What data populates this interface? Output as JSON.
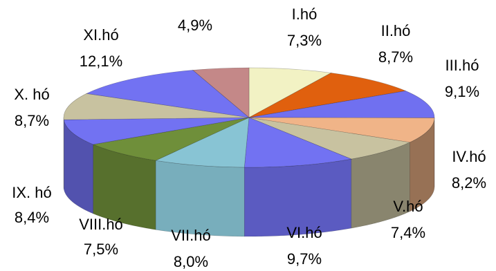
{
  "chart_data": {
    "type": "pie",
    "style": "3d",
    "title": "",
    "legend": "none",
    "start_angle_deg": 90,
    "direction": "clockwise",
    "slices": [
      {
        "name": "I.hó",
        "value": 7.3,
        "label": "7,3%",
        "color": "#f2f2c4"
      },
      {
        "name": "II.hó",
        "value": 8.7,
        "label": "8,7%",
        "color": "#e0600e"
      },
      {
        "name": "III.hó",
        "value": 9.1,
        "label": "9,1%",
        "color": "#7070f0"
      },
      {
        "name": "IV.hó",
        "value": 8.2,
        "label": "8,2%",
        "color": "#f0b488"
      },
      {
        "name": "V.hó",
        "value": 7.4,
        "label": "7,4%",
        "color": "#c8c2a0"
      },
      {
        "name": "VI.hó",
        "value": 9.7,
        "label": "9,7%",
        "color": "#7272f2"
      },
      {
        "name": "VII.hó",
        "value": 8.0,
        "label": "8,0%",
        "color": "#88c4d4"
      },
      {
        "name": "VIII.hó",
        "value": 7.5,
        "label": "7,5%",
        "color": "#6f8f3a"
      },
      {
        "name": "IX. hó",
        "value": 8.4,
        "label": "8,4%",
        "color": "#7272f2"
      },
      {
        "name": "X. hó",
        "value": 8.7,
        "label": "8,7%",
        "color": "#c8c2a0"
      },
      {
        "name": "XI.hó",
        "value": 12.1,
        "label": "12,1%",
        "color": "#7272f2"
      },
      {
        "name": "",
        "value": 4.9,
        "label": "4,9%",
        "color": "#c48888"
      }
    ]
  }
}
